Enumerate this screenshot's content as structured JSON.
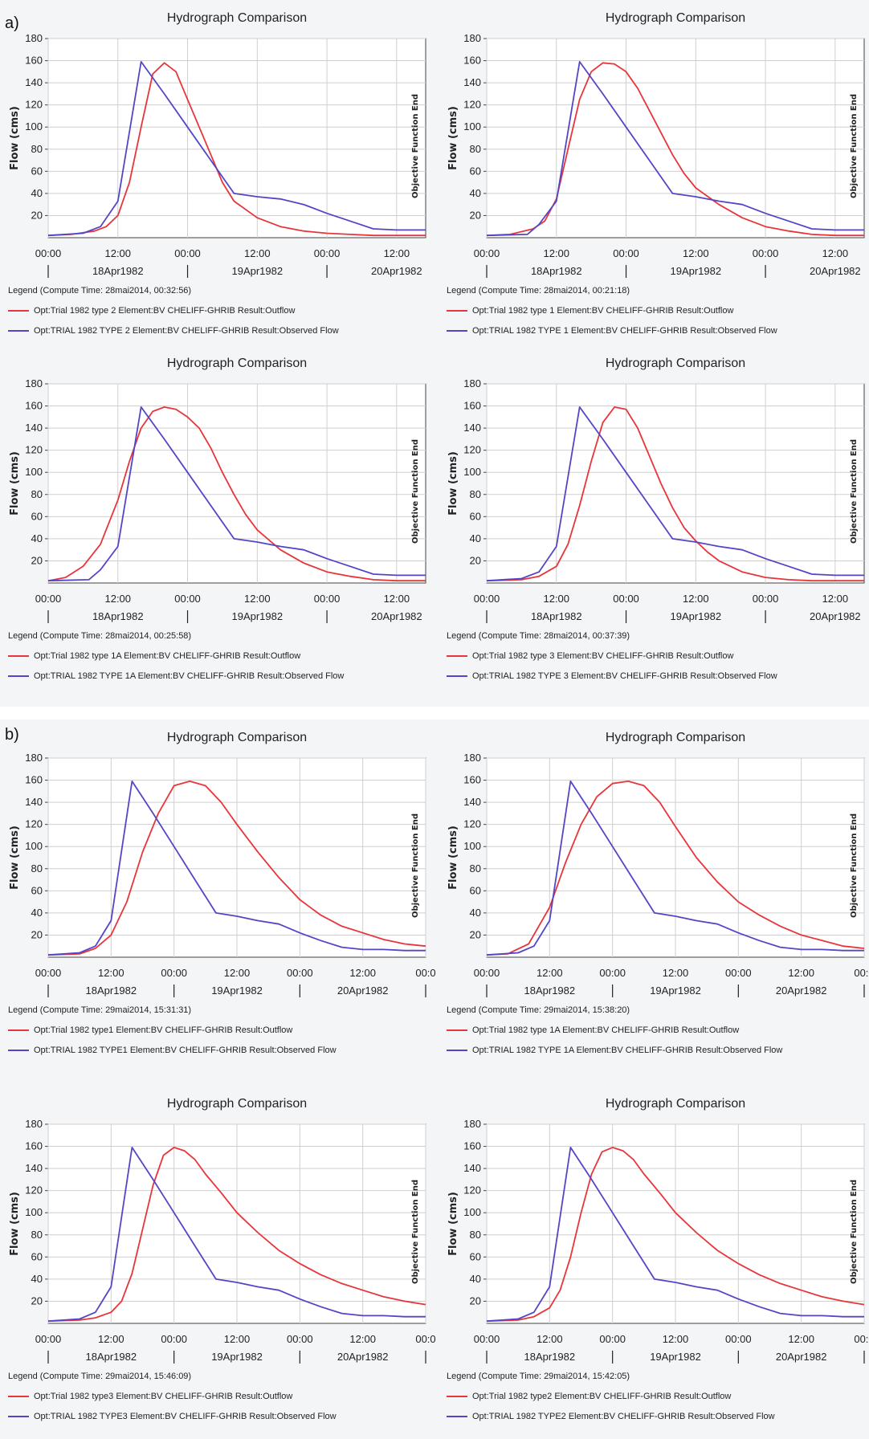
{
  "sections": [
    {
      "label": "a)"
    },
    {
      "label": "b)"
    }
  ],
  "colors": {
    "outflow": "#e8353a",
    "observed": "#5346c6"
  },
  "common": {
    "title": "Hydrograph Comparison",
    "ylabel": "Flow (cms)",
    "objective_label": "Objective Function End",
    "yticks": [
      "20",
      "40",
      "60",
      "80",
      "100",
      "120",
      "140",
      "160",
      "180"
    ],
    "day_labels": [
      "18Apr1982",
      "19Apr1982",
      "20Apr1982"
    ]
  },
  "panels": [
    {
      "xtick_labels": [
        "00:00",
        "12:00",
        "00:00",
        "12:00",
        "00:00",
        "12:00"
      ],
      "legend_header": "Legend (Compute Time: 28mai2014, 00:32:56)",
      "chart_data": {
        "type": "line",
        "title": "Hydrograph Comparison",
        "xlabel": "",
        "ylabel": "Flow (cms)",
        "ylim": [
          0,
          180
        ],
        "xlim_hours": [
          0,
          65
        ],
        "series": [
          {
            "name": "Opt:Trial 1982 type 2 Element:BV CHELIFF-GHRIB Result:Outflow",
            "x": [
              0,
              4,
              8,
              10,
              12,
              14,
              16,
              18,
              20,
              22,
              24,
              26,
              28,
              30,
              32,
              36,
              40,
              44,
              48,
              52,
              56,
              60,
              65
            ],
            "y": [
              2,
              3,
              6,
              10,
              20,
              50,
              100,
              148,
              158,
              150,
              125,
              100,
              75,
              50,
              33,
              18,
              10,
              6,
              4,
              3,
              2,
              2,
              2
            ]
          },
          {
            "name": "Opt:TRIAL 1982 TYPE 2 Element:BV CHELIFF-GHRIB Result:Observed Flow",
            "x": [
              0,
              6,
              9,
              12,
              16,
              20,
              24,
              28,
              32,
              36,
              40,
              44,
              48,
              52,
              56,
              60,
              65
            ],
            "y": [
              2,
              4,
              10,
              33,
              159,
              130,
              100,
              70,
              40,
              37,
              35,
              30,
              22,
              15,
              8,
              7,
              7
            ]
          }
        ]
      }
    },
    {
      "xtick_labels": [
        "00:00",
        "12:00",
        "00:00",
        "12:00",
        "00:00",
        "12:00"
      ],
      "legend_header": "Legend (Compute Time: 28mai2014, 00:21:18)",
      "chart_data": {
        "type": "line",
        "title": "Hydrograph Comparison",
        "xlabel": "",
        "ylabel": "Flow (cms)",
        "ylim": [
          0,
          180
        ],
        "xlim_hours": [
          0,
          65
        ],
        "series": [
          {
            "name": "Opt:Trial 1982 type 1 Element:BV CHELIFF-GHRIB Result:Outflow",
            "x": [
              0,
              4,
              8,
              10,
              12,
              14,
              16,
              18,
              20,
              22,
              24,
              26,
              28,
              30,
              32,
              34,
              36,
              40,
              44,
              48,
              52,
              56,
              60,
              65
            ],
            "y": [
              2,
              3,
              8,
              15,
              35,
              80,
              125,
              150,
              158,
              157,
              150,
              135,
              115,
              95,
              75,
              58,
              45,
              30,
              18,
              10,
              6,
              3,
              2,
              2
            ]
          },
          {
            "name": "Opt:TRIAL 1982 TYPE 1 Element:BV CHELIFF-GHRIB Result:Observed Flow",
            "x": [
              0,
              7,
              9,
              12,
              16,
              20,
              24,
              28,
              32,
              36,
              40,
              44,
              48,
              52,
              56,
              60,
              65
            ],
            "y": [
              2,
              3,
              12,
              33,
              159,
              130,
              100,
              70,
              40,
              37,
              33,
              30,
              22,
              15,
              8,
              7,
              7
            ]
          }
        ]
      }
    },
    {
      "xtick_labels": [
        "00:00",
        "12:00",
        "00:00",
        "12:00",
        "00:00",
        "12:00"
      ],
      "legend_header": "Legend (Compute Time: 28mai2014, 00:25:58)",
      "chart_data": {
        "type": "line",
        "title": "Hydrograph Comparison",
        "xlabel": "",
        "ylabel": "Flow (cms)",
        "ylim": [
          0,
          180
        ],
        "xlim_hours": [
          0,
          65
        ],
        "series": [
          {
            "name": "Opt:Trial 1982 type 1A Element:BV CHELIFF-GHRIB Result:Outflow",
            "x": [
              0,
              3,
              6,
              9,
              12,
              14,
              16,
              18,
              20,
              22,
              24,
              26,
              28,
              30,
              32,
              34,
              36,
              40,
              44,
              48,
              52,
              56,
              60,
              65
            ],
            "y": [
              2,
              5,
              15,
              35,
              75,
              110,
              140,
              155,
              159,
              157,
              150,
              140,
              122,
              100,
              80,
              62,
              48,
              30,
              18,
              10,
              6,
              3,
              2,
              2
            ]
          },
          {
            "name": "Opt:TRIAL 1982 TYPE 1A Element:BV CHELIFF-GHRIB Result:Observed Flow",
            "x": [
              0,
              7,
              9,
              12,
              16,
              20,
              24,
              28,
              32,
              36,
              40,
              44,
              48,
              52,
              56,
              60,
              65
            ],
            "y": [
              2,
              3,
              12,
              33,
              159,
              130,
              100,
              70,
              40,
              37,
              33,
              30,
              22,
              15,
              8,
              7,
              7
            ]
          }
        ]
      }
    },
    {
      "xtick_labels": [
        "00:00",
        "12:00",
        "00:00",
        "12:00",
        "00:00",
        "12:00"
      ],
      "legend_header": "Legend (Compute Time: 28mai2014, 00:37:39)",
      "chart_data": {
        "type": "line",
        "title": "Hydrograph Comparison",
        "xlabel": "",
        "ylabel": "Flow (cms)",
        "ylim": [
          0,
          180
        ],
        "xlim_hours": [
          0,
          65
        ],
        "series": [
          {
            "name": "Opt:Trial 1982 type 3 Element:BV CHELIFF-GHRIB Result:Outflow",
            "x": [
              0,
              6,
              9,
              12,
              14,
              16,
              18,
              20,
              22,
              24,
              26,
              28,
              30,
              32,
              34,
              36,
              38,
              40,
              44,
              48,
              52,
              56,
              60,
              65
            ],
            "y": [
              2,
              3,
              6,
              15,
              35,
              70,
              110,
              145,
              159,
              157,
              140,
              115,
              90,
              68,
              50,
              38,
              28,
              20,
              10,
              5,
              3,
              2,
              2,
              2
            ]
          },
          {
            "name": "Opt:TRIAL 1982 TYPE 3 Element:BV CHELIFF-GHRIB Result:Observed Flow",
            "x": [
              0,
              6,
              9,
              12,
              16,
              20,
              24,
              28,
              32,
              36,
              40,
              44,
              48,
              52,
              56,
              60,
              65
            ],
            "y": [
              2,
              4,
              10,
              33,
              159,
              130,
              100,
              70,
              40,
              37,
              33,
              30,
              22,
              15,
              8,
              7,
              7
            ]
          }
        ]
      }
    },
    {
      "xtick_labels": [
        "00:00",
        "12:00",
        "00:00",
        "12:00",
        "00:00",
        "12:00",
        "00:0"
      ],
      "legend_header": "Legend (Compute Time: 29mai2014, 15:31:31)",
      "chart_data": {
        "type": "line",
        "title": "Hydrograph Comparison",
        "xlabel": "",
        "ylabel": "Flow (cms)",
        "ylim": [
          0,
          180
        ],
        "xlim_hours": [
          0,
          72
        ],
        "series": [
          {
            "name": "Opt:Trial 1982 type1 Element:BV CHELIFF-GHRIB Result:Outflow",
            "x": [
              0,
              6,
              9,
              12,
              15,
              18,
              21,
              24,
              27,
              30,
              33,
              36,
              40,
              44,
              48,
              52,
              56,
              60,
              64,
              68,
              72
            ],
            "y": [
              2,
              3,
              8,
              20,
              50,
              95,
              130,
              155,
              159,
              155,
              140,
              120,
              95,
              72,
              52,
              38,
              28,
              22,
              16,
              12,
              10
            ]
          },
          {
            "name": "Opt:TRIAL 1982 TYPE1 Element:BV CHELIFF-GHRIB Result:Observed Flow",
            "x": [
              0,
              6,
              9,
              12,
              16,
              20,
              24,
              28,
              32,
              36,
              40,
              44,
              48,
              52,
              56,
              60,
              64,
              68,
              72
            ],
            "y": [
              2,
              4,
              10,
              33,
              159,
              130,
              100,
              70,
              40,
              37,
              33,
              30,
              22,
              15,
              9,
              7,
              7,
              6,
              6
            ]
          }
        ]
      }
    },
    {
      "xtick_labels": [
        "00:00",
        "12:00",
        "00:00",
        "12:00",
        "00:00",
        "12:00",
        "00:0"
      ],
      "legend_header": "Legend (Compute Time: 29mai2014, 15:38:20)",
      "chart_data": {
        "type": "line",
        "title": "Hydrograph Comparison",
        "xlabel": "",
        "ylabel": "Flow (cms)",
        "ylim": [
          0,
          180
        ],
        "xlim_hours": [
          0,
          72
        ],
        "series": [
          {
            "name": "Opt:Trial 1982 type 1A Element:BV CHELIFF-GHRIB Result:Outflow",
            "x": [
              0,
              4,
              8,
              12,
              15,
              18,
              21,
              24,
              27,
              30,
              33,
              36,
              40,
              44,
              48,
              52,
              56,
              60,
              64,
              68,
              72
            ],
            "y": [
              2,
              3,
              12,
              45,
              85,
              120,
              145,
              157,
              159,
              155,
              140,
              118,
              90,
              68,
              50,
              38,
              28,
              20,
              15,
              10,
              8
            ]
          },
          {
            "name": "Opt:TRIAL 1982 TYPE 1A Element:BV CHELIFF-GHRIB Result:Observed Flow",
            "x": [
              0,
              6,
              9,
              12,
              16,
              20,
              24,
              28,
              32,
              36,
              40,
              44,
              48,
              52,
              56,
              60,
              64,
              68,
              72
            ],
            "y": [
              2,
              4,
              10,
              33,
              159,
              130,
              100,
              70,
              40,
              37,
              33,
              30,
              22,
              15,
              9,
              7,
              7,
              6,
              6
            ]
          }
        ]
      }
    },
    {
      "xtick_labels": [
        "00:00",
        "12:00",
        "00:00",
        "12:00",
        "00:00",
        "12:00",
        "00:0"
      ],
      "legend_header": "Legend (Compute Time: 29mai2014, 15:46:09)",
      "chart_data": {
        "type": "line",
        "title": "Hydrograph Comparison",
        "xlabel": "",
        "ylabel": "Flow (cms)",
        "ylim": [
          0,
          180
        ],
        "xlim_hours": [
          0,
          72
        ],
        "series": [
          {
            "name": "Opt:Trial 1982 type3 Element:BV CHELIFF-GHRIB Result:Outflow",
            "x": [
              0,
              6,
              9,
              12,
              14,
              16,
              18,
              20,
              22,
              24,
              26,
              28,
              30,
              33,
              36,
              40,
              44,
              48,
              52,
              56,
              60,
              64,
              68,
              72
            ],
            "y": [
              2,
              3,
              5,
              10,
              20,
              45,
              85,
              125,
              152,
              159,
              156,
              148,
              135,
              118,
              100,
              82,
              66,
              54,
              44,
              36,
              30,
              24,
              20,
              17
            ]
          },
          {
            "name": "Opt:TRIAL 1982 TYPE3 Element:BV CHELIFF-GHRIB Result:Observed Flow",
            "x": [
              0,
              6,
              9,
              12,
              16,
              20,
              24,
              28,
              32,
              36,
              40,
              44,
              48,
              52,
              56,
              60,
              64,
              68,
              72
            ],
            "y": [
              2,
              4,
              10,
              33,
              159,
              130,
              100,
              70,
              40,
              37,
              33,
              30,
              22,
              15,
              9,
              7,
              7,
              6,
              6
            ]
          }
        ]
      }
    },
    {
      "xtick_labels": [
        "00:00",
        "12:00",
        "00:00",
        "12:00",
        "00:00",
        "12:00",
        "00:0"
      ],
      "legend_header": "Legend (Compute Time: 29mai2014, 15:42:05)",
      "chart_data": {
        "type": "line",
        "title": "Hydrograph Comparison",
        "xlabel": "",
        "ylabel": "Flow (cms)",
        "ylim": [
          0,
          180
        ],
        "xlim_hours": [
          0,
          72
        ],
        "series": [
          {
            "name": "Opt:Trial 1982 type2 Element:BV CHELIFF-GHRIB Result:Outflow",
            "x": [
              0,
              6,
              9,
              12,
              14,
              16,
              18,
              20,
              22,
              24,
              26,
              28,
              30,
              33,
              36,
              40,
              44,
              48,
              52,
              56,
              60,
              64,
              68,
              72
            ],
            "y": [
              2,
              3,
              6,
              14,
              30,
              60,
              100,
              135,
              155,
              159,
              156,
              148,
              135,
              118,
              100,
              82,
              66,
              54,
              44,
              36,
              30,
              24,
              20,
              17
            ]
          },
          {
            "name": "Opt:TRIAL 1982 TYPE2 Element:BV CHELIFF-GHRIB Result:Observed Flow",
            "x": [
              0,
              6,
              9,
              12,
              16,
              20,
              24,
              28,
              32,
              36,
              40,
              44,
              48,
              52,
              56,
              60,
              64,
              68,
              72
            ],
            "y": [
              2,
              4,
              10,
              33,
              159,
              130,
              100,
              70,
              40,
              37,
              33,
              30,
              22,
              15,
              9,
              7,
              7,
              6,
              6
            ]
          }
        ]
      }
    }
  ]
}
